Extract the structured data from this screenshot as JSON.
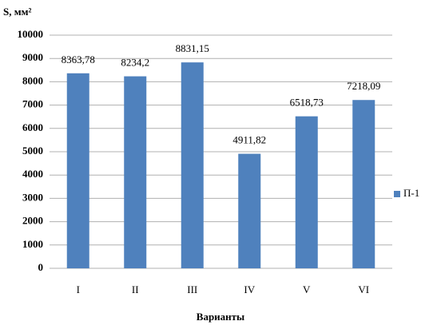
{
  "chart_data": {
    "type": "bar",
    "y_axis_label": "S, мм²",
    "x_axis_label": "Варианты",
    "categories": [
      "I",
      "II",
      "III",
      "IV",
      "V",
      "VI"
    ],
    "series": [
      {
        "name": "П-1",
        "color": "#4f81bd",
        "values": [
          8363.78,
          8234.2,
          8831.15,
          4911.82,
          6518.73,
          7218.09
        ],
        "value_labels": [
          "8363,78",
          "8234,2",
          "8831,15",
          "4911,82",
          "6518,73",
          "7218,09"
        ]
      }
    ],
    "ylim": [
      0,
      10000
    ],
    "yticks": [
      0,
      1000,
      2000,
      3000,
      4000,
      5000,
      6000,
      7000,
      8000,
      9000,
      10000
    ],
    "grid": true,
    "legend": "right"
  }
}
